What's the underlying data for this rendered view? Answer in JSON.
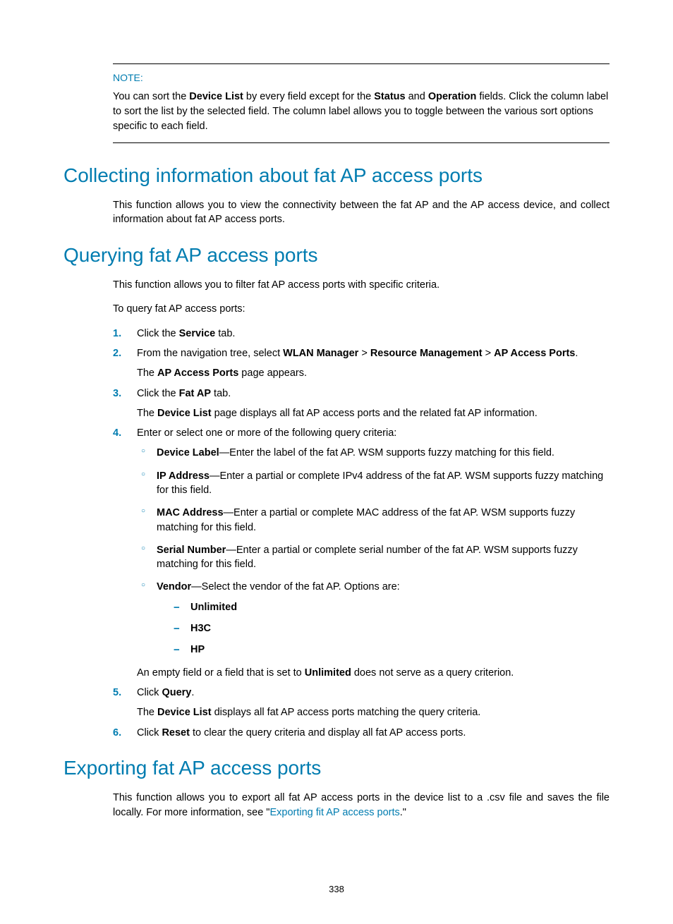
{
  "note": {
    "label": "NOTE:",
    "text_parts": [
      "You can sort the ",
      "Device List",
      " by every field except for the ",
      "Status",
      " and ",
      "Operation",
      " fields. Click the column label to sort the list by the selected field. The column label allows you to toggle between the various sort options specific to each field."
    ]
  },
  "section1": {
    "heading": "Collecting information about fat AP access ports",
    "intro": "This function allows you to view the connectivity between the fat AP and the AP access device, and collect information about fat AP access ports."
  },
  "section2": {
    "heading": "Querying fat AP access ports",
    "intro": "This function allows you to filter fat AP access ports with specific criteria.",
    "lead": "To query fat AP access ports:",
    "steps": {
      "s1": {
        "a": "Click the ",
        "b": "Service",
        "c": " tab."
      },
      "s2": {
        "a": "From the navigation tree, select ",
        "b": "WLAN Manager",
        "gt1": " > ",
        "c": "Resource Management",
        "gt2": " > ",
        "d": "AP Access Ports",
        "e": ".",
        "sub_a": "The ",
        "sub_b": "AP Access Ports",
        "sub_c": " page appears."
      },
      "s3": {
        "a": "Click the ",
        "b": "Fat AP",
        "c": " tab.",
        "sub_a": "The ",
        "sub_b": "Device List",
        "sub_c": " page displays all fat AP access ports and the related fat AP information."
      },
      "s4": {
        "a": "Enter or select one or more of the following query criteria:",
        "b1_a": "Device Label",
        "b1_b": "—Enter the label of the fat AP. WSM supports fuzzy matching for this field.",
        "b2_a": "IP Address",
        "b2_b": "—Enter a partial or complete IPv4 address of the fat AP. WSM supports fuzzy matching for this field.",
        "b3_a": "MAC Address",
        "b3_b": "—Enter a partial or complete MAC address of the fat AP. WSM supports fuzzy matching for this field.",
        "b4_a": "Serial Number",
        "b4_b": "—Enter a partial or complete serial number of the fat AP. WSM supports fuzzy matching for this field.",
        "b5_a": "Vendor",
        "b5_b": "—Select the vendor of the fat AP. Options are:",
        "d1": "Unlimited",
        "d2": "H3C",
        "d3": "HP",
        "tail_a": "An empty field or a field that is set to ",
        "tail_b": "Unlimited",
        "tail_c": " does not serve as a query criterion."
      },
      "s5": {
        "a": "Click ",
        "b": "Query",
        "c": ".",
        "sub_a": "The ",
        "sub_b": "Device List",
        "sub_c": " displays all fat AP access ports matching the query criteria."
      },
      "s6": {
        "a": "Click ",
        "b": "Reset",
        "c": " to clear the query criteria and display all fat AP access ports."
      }
    }
  },
  "section3": {
    "heading": "Exporting fat AP access ports",
    "intro_a": "This function allows you to export all fat AP access ports in the device list to a .csv file and saves the file locally. For more information, see \"",
    "intro_link": "Exporting fit AP access ports",
    "intro_b": ".\""
  },
  "page_number": "338"
}
